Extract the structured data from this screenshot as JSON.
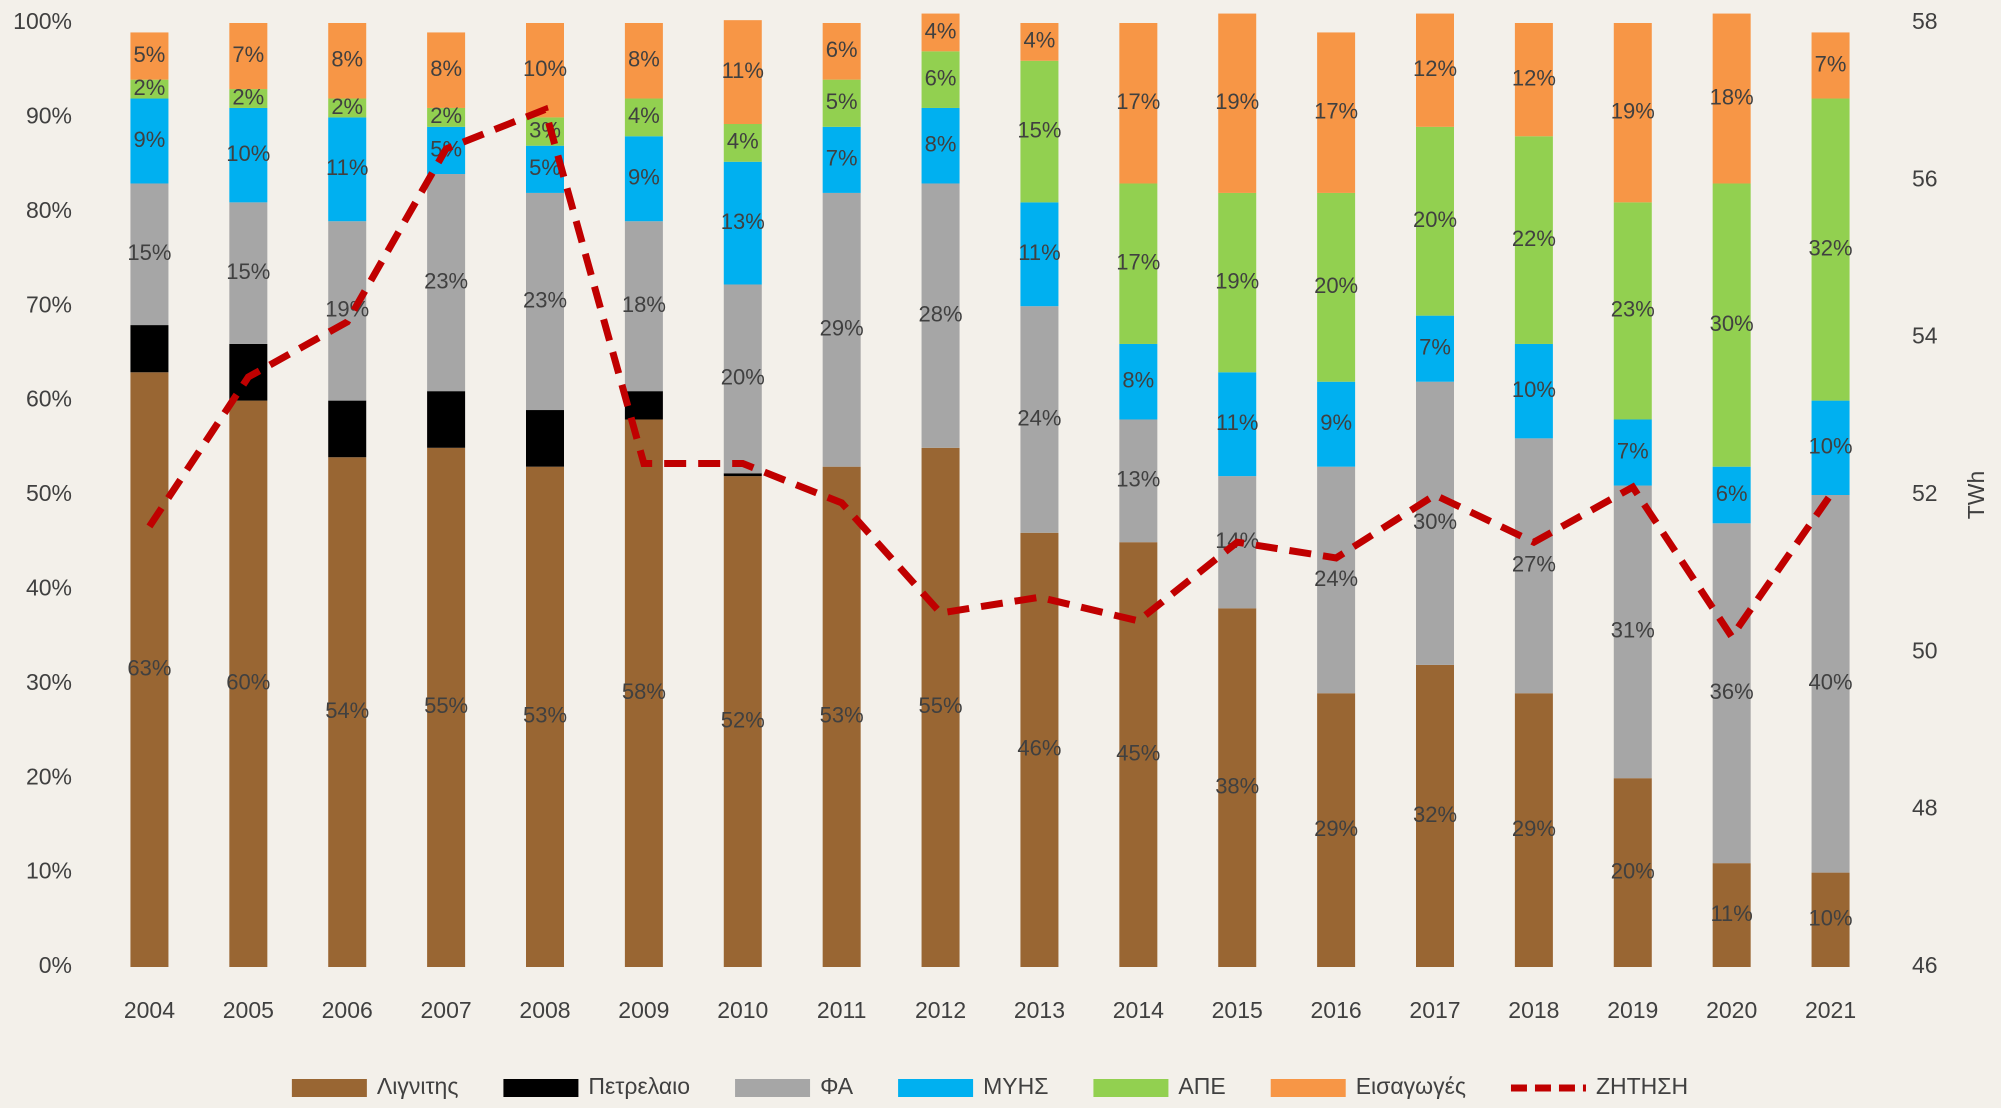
{
  "chart_data": {
    "type": "bar",
    "stacked": true,
    "categories": [
      "2004",
      "2005",
      "2006",
      "2007",
      "2008",
      "2009",
      "2010",
      "2011",
      "2012",
      "2013",
      "2014",
      "2015",
      "2016",
      "2017",
      "2018",
      "2019",
      "2020",
      "2021"
    ],
    "series": [
      {
        "name": "Λιγνιτης",
        "color": "#996633",
        "values": [
          63,
          60,
          54,
          55,
          53,
          58,
          52,
          53,
          55,
          46,
          45,
          38,
          29,
          32,
          29,
          20,
          11,
          10
        ],
        "value_labels": [
          "63%",
          "60%",
          "54%",
          "55%",
          "53%",
          "58%",
          "52%",
          "53%",
          "55%",
          "46%",
          "45%",
          "38%",
          "29%",
          "32%",
          "29%",
          "20%",
          "11%",
          "10%"
        ]
      },
      {
        "name": "Πετρελαιο",
        "color": "#000000",
        "values": [
          5,
          6,
          6,
          6,
          6,
          3,
          0.3,
          null,
          null,
          null,
          null,
          null,
          null,
          null,
          null,
          null,
          null,
          null
        ]
      },
      {
        "name": "ΦΑ",
        "color": "#a6a6a6",
        "values": [
          15,
          15,
          19,
          23,
          23,
          18,
          20,
          29,
          28,
          24,
          13,
          14,
          24,
          30,
          27,
          31,
          36,
          40
        ],
        "value_labels": [
          "15%",
          "15%",
          "19%",
          "23%",
          "23%",
          "18%",
          "20%",
          "29%",
          "28%",
          "24%",
          "13%",
          "14%",
          "24%",
          "30%",
          "27%",
          "31%",
          "36%",
          "40%"
        ]
      },
      {
        "name": "ΜΥΗΣ",
        "color": "#00b0f0",
        "values": [
          9,
          10,
          11,
          5,
          5,
          9,
          13,
          7,
          8,
          11,
          8,
          11,
          9,
          7,
          10,
          7,
          6,
          10
        ],
        "value_labels": [
          "9%",
          "10%",
          "11%",
          "5%",
          "5%",
          "9%",
          "13%",
          "7%",
          "8%",
          "11%",
          "8%",
          "11%",
          "9%",
          "7%",
          "10%",
          "7%",
          "6%",
          "10%"
        ]
      },
      {
        "name": "ΑΠΕ",
        "color": "#92d050",
        "values": [
          2,
          2,
          2,
          2,
          3,
          4,
          4,
          5,
          6,
          15,
          17,
          19,
          20,
          20,
          22,
          23,
          30,
          32
        ],
        "value_labels": [
          "2%",
          "2%",
          "2%",
          "2%",
          "3%",
          "4%",
          "4%",
          "5%",
          "6%",
          "15%",
          "17%",
          "19%",
          "20%",
          "20%",
          "22%",
          "23%",
          "30%",
          "32%"
        ]
      },
      {
        "name": "Εισαγωγές",
        "color": "#f79646",
        "values": [
          5,
          7,
          8,
          8,
          10,
          8,
          11,
          6,
          4,
          4,
          17,
          19,
          17,
          12,
          12,
          19,
          18,
          7
        ],
        "value_labels": [
          "5%",
          "7%",
          "8%",
          "8%",
          "10%",
          "8%",
          "11%",
          "6%",
          "4%",
          "4%",
          "17%",
          "19%",
          "17%",
          "12%",
          "12%",
          "19%",
          "18%",
          "7%"
        ]
      },
      {
        "name": "ΖΗΤΗΣΗ",
        "type": "line",
        "axis": "y2",
        "color": "#c00000",
        "dashed": true,
        "values": [
          51.6,
          53.5,
          54.2,
          56.4,
          56.9,
          52.4,
          52.4,
          51.9,
          50.5,
          50.7,
          50.4,
          51.4,
          51.2,
          52.0,
          51.4,
          52.1,
          50.2,
          52.0
        ]
      }
    ],
    "ylim": [
      0,
      100
    ],
    "yticks": [
      {
        "value": 0,
        "label": "0%"
      },
      {
        "value": 10,
        "label": "10%"
      },
      {
        "value": 20,
        "label": "20%"
      },
      {
        "value": 30,
        "label": "30%"
      },
      {
        "value": 40,
        "label": "40%"
      },
      {
        "value": 50,
        "label": "50%"
      },
      {
        "value": 60,
        "label": "60%"
      },
      {
        "value": 70,
        "label": "70%"
      },
      {
        "value": 80,
        "label": "80%"
      },
      {
        "value": 90,
        "label": "90%"
      },
      {
        "value": 100,
        "label": "100%"
      }
    ],
    "y2lim": [
      46,
      58
    ],
    "y2ticks": [
      46,
      48,
      50,
      52,
      54,
      56,
      58
    ],
    "y2label": "TWh",
    "grid": false,
    "legend": "bottom"
  }
}
